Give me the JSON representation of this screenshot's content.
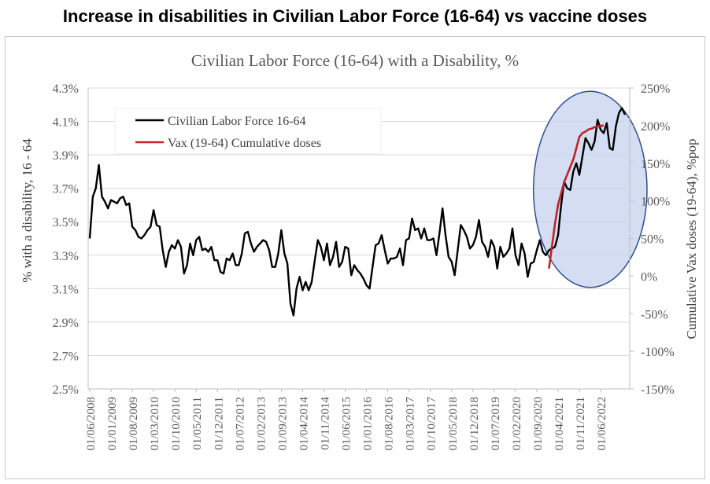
{
  "headline": "Increase in disabilities in Civilian Labor Force (16-64) vs vaccine doses",
  "chart_data": {
    "type": "line",
    "title": "Civilian Labor Force (16-64) with a Disability, %",
    "ylabel": "% with a disability, 16 - 64",
    "y2label": "Cumulative Vax doses (19-64), %pop",
    "ylim": [
      2.5,
      4.3
    ],
    "y2lim": [
      -150,
      250
    ],
    "yticks": [
      "4.3%",
      "4.1%",
      "3.9%",
      "3.7%",
      "3.5%",
      "3.3%",
      "3.1%",
      "2.9%",
      "2.7%",
      "2.5%"
    ],
    "y2ticks": [
      "250%",
      "200%",
      "150%",
      "100%",
      "50%",
      "0%",
      "-50%",
      "-100%",
      "-150%"
    ],
    "xticks": [
      "01/06/2008",
      "01/01/2009",
      "01/08/2009",
      "01/03/2010",
      "01/10/2010",
      "01/05/2011",
      "01/12/2011",
      "01/07/2012",
      "01/02/2013",
      "01/09/2013",
      "01/04/2014",
      "01/11/2014",
      "01/06/2015",
      "01/01/2016",
      "01/08/2016",
      "01/03/2017",
      "01/10/2017",
      "01/05/2018",
      "01/12/2018",
      "01/07/2019",
      "01/02/2020",
      "01/09/2020",
      "01/04/2021",
      "01/11/2021",
      "01/06/2022"
    ],
    "legend_position": "top-left",
    "colors": {
      "disability": "#000000",
      "vax": "#c0232b",
      "ellipse_fill": "#c9d5ef",
      "ellipse_stroke": "#2f4f8f"
    },
    "series": [
      {
        "name": "Civilian Labor Force 16-64",
        "axis": "left",
        "start": "2008-06",
        "values": [
          3.4,
          3.65,
          3.7,
          3.84,
          3.65,
          3.62,
          3.58,
          3.63,
          3.62,
          3.61,
          3.64,
          3.65,
          3.6,
          3.61,
          3.47,
          3.45,
          3.41,
          3.4,
          3.42,
          3.45,
          3.47,
          3.57,
          3.48,
          3.47,
          3.33,
          3.23,
          3.32,
          3.36,
          3.34,
          3.39,
          3.35,
          3.19,
          3.24,
          3.37,
          3.3,
          3.39,
          3.41,
          3.33,
          3.34,
          3.32,
          3.35,
          3.27,
          3.27,
          3.2,
          3.19,
          3.28,
          3.27,
          3.31,
          3.24,
          3.24,
          3.31,
          3.43,
          3.44,
          3.37,
          3.32,
          3.35,
          3.37,
          3.39,
          3.38,
          3.33,
          3.23,
          3.23,
          3.31,
          3.45,
          3.31,
          3.25,
          3.01,
          2.94,
          3.1,
          3.17,
          3.09,
          3.14,
          3.09,
          3.14,
          3.27,
          3.39,
          3.35,
          3.27,
          3.37,
          3.24,
          3.29,
          3.38,
          3.23,
          3.26,
          3.35,
          3.34,
          3.18,
          3.24,
          3.21,
          3.19,
          3.16,
          3.12,
          3.1,
          3.23,
          3.36,
          3.37,
          3.42,
          3.33,
          3.25,
          3.28,
          3.28,
          3.29,
          3.34,
          3.24,
          3.39,
          3.4,
          3.52,
          3.45,
          3.46,
          3.4,
          3.46,
          3.39,
          3.39,
          3.4,
          3.3,
          3.43,
          3.58,
          3.42,
          3.29,
          3.26,
          3.18,
          3.33,
          3.48,
          3.45,
          3.41,
          3.34,
          3.36,
          3.41,
          3.51,
          3.38,
          3.35,
          3.29,
          3.39,
          3.35,
          3.22,
          3.35,
          3.29,
          3.31,
          3.34,
          3.46,
          3.3,
          3.24,
          3.37,
          3.31,
          3.17,
          3.25,
          3.26,
          3.33,
          3.39,
          3.32,
          3.3,
          3.33,
          3.34,
          3.35,
          3.42,
          3.6,
          3.74,
          3.7,
          3.69,
          3.8,
          3.85,
          3.78,
          3.89,
          4.0,
          3.97,
          3.93,
          3.98,
          4.11,
          4.05,
          4.03,
          4.09,
          3.94,
          3.93,
          4.07,
          4.15,
          4.18,
          4.14
        ]
      },
      {
        "name": "Vax (19-64) Cumulative doses",
        "axis": "right",
        "start": "2021-01",
        "values": [
          10,
          40,
          70,
          95,
          110,
          125,
          135,
          145,
          155,
          170,
          185,
          190,
          192,
          195,
          196,
          198,
          199,
          200,
          200
        ]
      }
    ],
    "annotations": [
      {
        "type": "ellipse",
        "label": "highlight 2021-2022 increase"
      }
    ]
  }
}
